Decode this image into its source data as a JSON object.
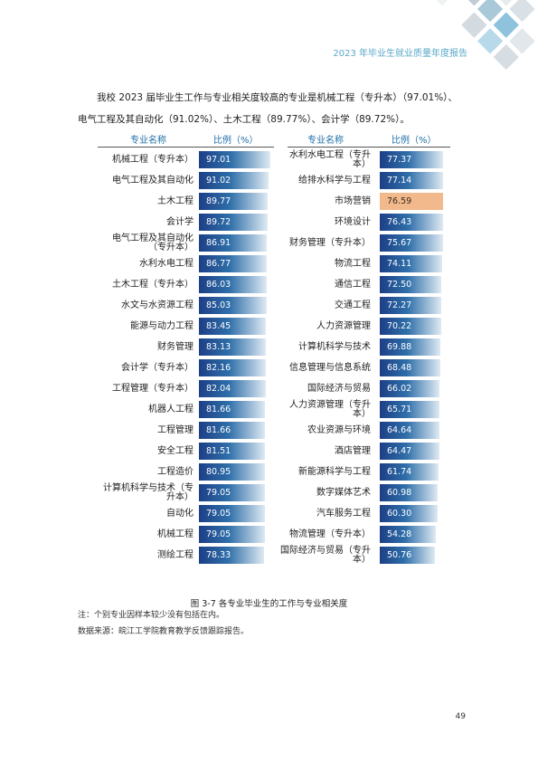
{
  "header": {
    "title": "2023 年毕业生就业质量年度报告"
  },
  "intro": "我校 2023 届毕业生工作与专业相关度较高的专业是机械工程（专升本）（97.01%）、电气工程及其自动化（91.02%）、土木工程（89.77%）、会计学（89.72%）。",
  "table_headers": {
    "name_left": "专业名称",
    "ratio_left": "比例（%）",
    "name_right": "专业名称",
    "ratio_right": "比例（%）"
  },
  "colors": {
    "bar_dark": "#1d3f87",
    "bar_light": "#dfeaf3",
    "highlight": "#f2b98c"
  },
  "chart_data": {
    "type": "table",
    "columns": [
      "专业名称",
      "比例（%）"
    ],
    "left": [
      {
        "name": "机械工程（专升本）",
        "value": 97.01
      },
      {
        "name": "电气工程及其自动化",
        "value": 91.02
      },
      {
        "name": "土木工程",
        "value": 89.77
      },
      {
        "name": "会计学",
        "value": 89.72
      },
      {
        "name": "电气工程及其自动化（专升本）",
        "value": 86.91
      },
      {
        "name": "水利水电工程",
        "value": 86.77
      },
      {
        "name": "土木工程（专升本）",
        "value": 86.03
      },
      {
        "name": "水文与水资源工程",
        "value": 85.03
      },
      {
        "name": "能源与动力工程",
        "value": 83.45
      },
      {
        "name": "财务管理",
        "value": 83.13
      },
      {
        "name": "会计学（专升本）",
        "value": 82.16
      },
      {
        "name": "工程管理（专升本）",
        "value": 82.04
      },
      {
        "name": "机器人工程",
        "value": 81.66
      },
      {
        "name": "工程管理",
        "value": 81.66
      },
      {
        "name": "安全工程",
        "value": 81.51
      },
      {
        "name": "工程造价",
        "value": 80.95
      },
      {
        "name": "计算机科学与技术（专升本）",
        "value": 79.05
      },
      {
        "name": "自动化",
        "value": 79.05
      },
      {
        "name": "机械工程",
        "value": 79.05
      },
      {
        "name": "测绘工程",
        "value": 78.33
      }
    ],
    "right": [
      {
        "name": "水利水电工程（专升本）",
        "value": 77.37
      },
      {
        "name": "给排水科学与工程",
        "value": 77.14
      },
      {
        "name": "市场营销",
        "value": 76.59,
        "highlight": true
      },
      {
        "name": "环境设计",
        "value": 76.43
      },
      {
        "name": "财务管理（专升本）",
        "value": 75.67
      },
      {
        "name": "物流工程",
        "value": 74.11
      },
      {
        "name": "通信工程",
        "value": 72.5
      },
      {
        "name": "交通工程",
        "value": 72.27
      },
      {
        "name": "人力资源管理",
        "value": 70.22
      },
      {
        "name": "计算机科学与技术",
        "value": 69.88
      },
      {
        "name": "信息管理与信息系统",
        "value": 68.48
      },
      {
        "name": "国际经济与贸易",
        "value": 66.02
      },
      {
        "name": "人力资源管理（专升本）",
        "value": 65.71
      },
      {
        "name": "农业资源与环境",
        "value": 64.64
      },
      {
        "name": "酒店管理",
        "value": 64.47
      },
      {
        "name": "新能源科学与工程",
        "value": 61.74
      },
      {
        "name": "数字媒体艺术",
        "value": 60.98
      },
      {
        "name": "汽车服务工程",
        "value": 60.3
      },
      {
        "name": "物流管理（专升本）",
        "value": 54.28
      },
      {
        "name": "国际经济与贸易（专升本）",
        "value": 50.76
      }
    ]
  },
  "caption": "图 3-7    各专业毕业生的工作与专业相关度",
  "notes": [
    "注：个别专业因样本较少没有包括在内。",
    "数据来源：皖江工学院教育教学反馈跟踪报告。"
  ],
  "page_number": "49"
}
